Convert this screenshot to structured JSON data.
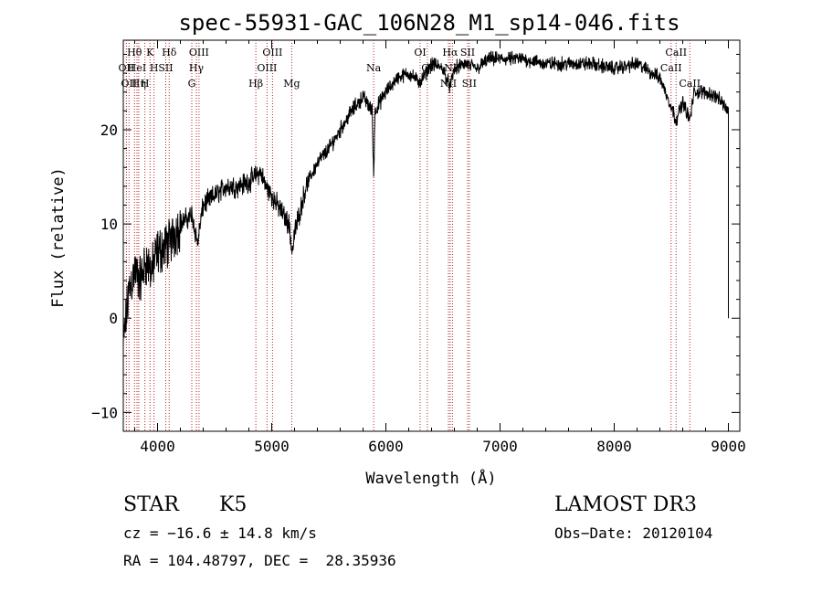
{
  "chart_data": {
    "type": "line",
    "title": "spec-55931-GAC_106N28_M1_sp14-046.fits",
    "xlabel": "Wavelength (Å)",
    "ylabel": "Flux (relative)",
    "xlim": [
      3700,
      9100
    ],
    "ylim": [
      -12,
      29.5
    ],
    "x_ticks": [
      4000,
      5000,
      6000,
      7000,
      8000,
      9000
    ],
    "x_tick_labels": [
      "4000",
      "5000",
      "6000",
      "7000",
      "8000",
      "9000"
    ],
    "y_ticks": [
      -10,
      0,
      10,
      20
    ],
    "y_tick_labels": [
      "−10",
      "0",
      "10",
      "20"
    ],
    "line_color": "#000000",
    "marker_color": "#b22222",
    "spectrum_anchors": [
      [
        3700,
        -3
      ],
      [
        3750,
        3
      ],
      [
        3800,
        5
      ],
      [
        3850,
        4
      ],
      [
        3900,
        6
      ],
      [
        3950,
        5
      ],
      [
        4000,
        7
      ],
      [
        4100,
        8
      ],
      [
        4200,
        10
      ],
      [
        4300,
        11
      ],
      [
        4350,
        8
      ],
      [
        4400,
        12
      ],
      [
        4500,
        13
      ],
      [
        4600,
        14
      ],
      [
        4700,
        14
      ],
      [
        4800,
        14.5
      ],
      [
        4900,
        15.5
      ],
      [
        4950,
        14
      ],
      [
        5000,
        13
      ],
      [
        5050,
        12
      ],
      [
        5150,
        10
      ],
      [
        5180,
        7
      ],
      [
        5200,
        9
      ],
      [
        5300,
        14
      ],
      [
        5400,
        16.5
      ],
      [
        5500,
        18
      ],
      [
        5600,
        20
      ],
      [
        5700,
        22
      ],
      [
        5800,
        23.5
      ],
      [
        5880,
        22
      ],
      [
        5893,
        15
      ],
      [
        5905,
        22
      ],
      [
        6000,
        24
      ],
      [
        6100,
        25.5
      ],
      [
        6200,
        26
      ],
      [
        6300,
        25
      ],
      [
        6400,
        27
      ],
      [
        6500,
        26.5
      ],
      [
        6563,
        24.5
      ],
      [
        6600,
        26.5
      ],
      [
        6700,
        27
      ],
      [
        6800,
        26.5
      ],
      [
        6900,
        27.5
      ],
      [
        7000,
        27.5
      ],
      [
        7200,
        27.5
      ],
      [
        7400,
        27
      ],
      [
        7600,
        27
      ],
      [
        7800,
        27
      ],
      [
        8000,
        26.5
      ],
      [
        8200,
        27
      ],
      [
        8400,
        25.5
      ],
      [
        8498,
        22.5
      ],
      [
        8542,
        21
      ],
      [
        8600,
        23
      ],
      [
        8662,
        21
      ],
      [
        8700,
        24
      ],
      [
        8800,
        24
      ],
      [
        8900,
        23.5
      ],
      [
        9000,
        22
      ]
    ],
    "spectral_lines": [
      {
        "wavelength": 3727,
        "label": "OII",
        "row": 1
      },
      {
        "wavelength": 3750,
        "label": "OII",
        "row": 2
      },
      {
        "wavelength": 3798,
        "label": "Hθ",
        "row": 0
      },
      {
        "wavelength": 3820,
        "label": "HeI",
        "row": 1
      },
      {
        "wavelength": 3835,
        "label": "Hη",
        "row": 2
      },
      {
        "wavelength": 3889,
        "label": "H",
        "row": 2
      },
      {
        "wavelength": 3934,
        "label": "K",
        "row": 0
      },
      {
        "wavelength": 3969,
        "label": "H",
        "row": 1
      },
      {
        "wavelength": 4072,
        "label": "SII",
        "row": 1
      },
      {
        "wavelength": 4102,
        "label": "Hδ",
        "row": 0
      },
      {
        "wavelength": 4300,
        "label": "G",
        "row": 2
      },
      {
        "wavelength": 4340,
        "label": "Hγ",
        "row": 1
      },
      {
        "wavelength": 4363,
        "label": "OIII",
        "row": 0
      },
      {
        "wavelength": 4861,
        "label": "Hβ",
        "row": 2
      },
      {
        "wavelength": 4959,
        "label": "OIII",
        "row": 1
      },
      {
        "wavelength": 5007,
        "label": "OIII",
        "row": 0
      },
      {
        "wavelength": 5175,
        "label": "Mg",
        "row": 2
      },
      {
        "wavelength": 5893,
        "label": "Na",
        "row": 1
      },
      {
        "wavelength": 6300,
        "label": "OI",
        "row": 0
      },
      {
        "wavelength": 6363,
        "label": "OI",
        "row": 1
      },
      {
        "wavelength": 6548,
        "label": "NII",
        "row": 2
      },
      {
        "wavelength": 6563,
        "label": "Hα",
        "row": 0
      },
      {
        "wavelength": 6583,
        "label": "NII",
        "row": 1
      },
      {
        "wavelength": 6716,
        "label": "SII",
        "row": 0
      },
      {
        "wavelength": 6731,
        "label": "SII",
        "row": 2
      },
      {
        "wavelength": 8498,
        "label": "CaII",
        "row": 1
      },
      {
        "wavelength": 8542,
        "label": "CaII",
        "row": 0
      },
      {
        "wavelength": 8662,
        "label": "CaII",
        "row": 2
      }
    ]
  },
  "footer": {
    "object_class": "STAR",
    "subclass": "K5",
    "survey": "LAMOST DR3",
    "redshift": "cz = −16.6 ± 14.8 km/s",
    "obs_date": "Obs−Date: 20120104",
    "coordinates": "RA = 104.48797, DEC =  28.35936"
  }
}
